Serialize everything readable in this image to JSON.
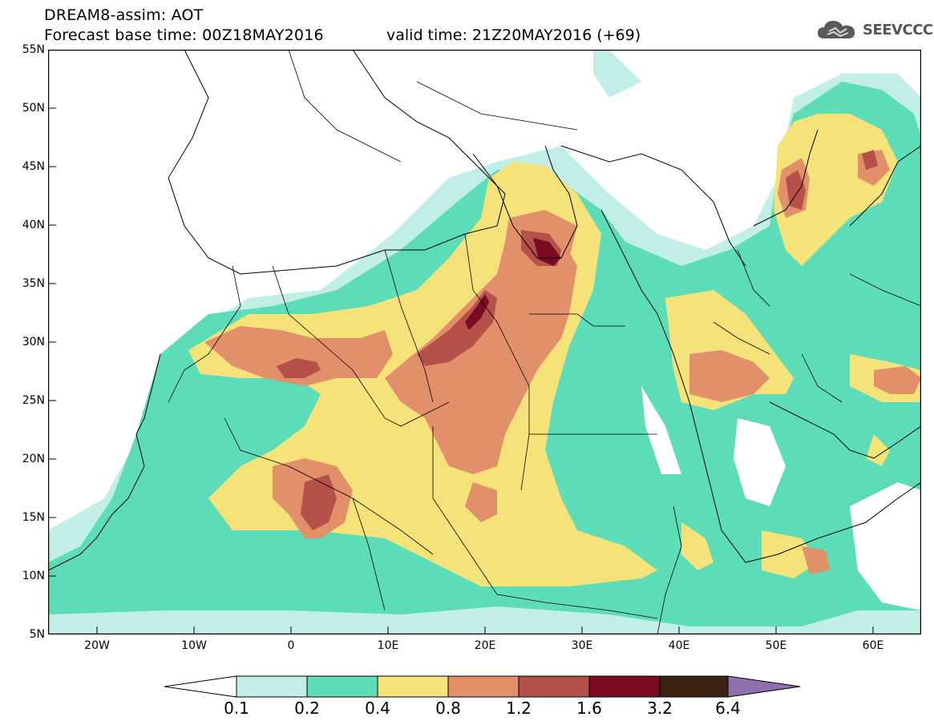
{
  "header": {
    "title_line1": "DREAM8-assim: AOT",
    "title_line2": "Forecast base time: 00Z18MAY2016",
    "valid_time": "valid time: 21Z20MAY2016 (+69)",
    "logo_text": "SEEVCCC",
    "logo_icon": "cloud-icon"
  },
  "axes": {
    "lat_labels": [
      "55N",
      "50N",
      "45N",
      "40N",
      "35N",
      "30N",
      "25N",
      "20N",
      "15N",
      "10N",
      "5N"
    ],
    "lon_labels": [
      "20W",
      "10W",
      "0",
      "10E",
      "20E",
      "30E",
      "40E",
      "50E",
      "60E"
    ]
  },
  "colorbar": {
    "levels": [
      "0.1",
      "0.2",
      "0.4",
      "0.8",
      "1.2",
      "1.6",
      "3.2",
      "6.4"
    ],
    "colors": [
      "#ffffff",
      "#c2eee8",
      "#5ddcb8",
      "#f5e37a",
      "#e2906a",
      "#b5504a",
      "#7c0a22",
      "#3d2312",
      "#8e6fb0"
    ]
  },
  "map_colors": {
    "land_outline": "#000000",
    "ocean": "#ffffff"
  }
}
